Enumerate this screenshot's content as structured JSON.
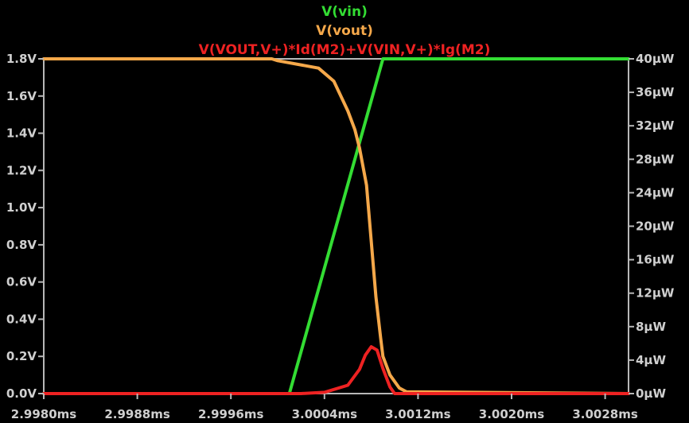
{
  "chart_data": {
    "type": "line",
    "title_lines": [
      {
        "text": "V(vin)",
        "color": "#33dd33"
      },
      {
        "text": "V(vout)",
        "color": "#f5a84a"
      },
      {
        "text": "V(VOUT,V+)*Id(M2)+V(VIN,V+)*Ig(M2)",
        "color": "#ee2222"
      }
    ],
    "x_axis": {
      "unit": "ms",
      "range": [
        2.998,
        3.003
      ],
      "ticks": [
        2.998,
        2.9988,
        2.9996,
        3.0004,
        3.0012,
        3.002,
        3.0028
      ],
      "tick_labels": [
        "2.9980ms",
        "2.9988ms",
        "2.9996ms",
        "3.0004ms",
        "3.0012ms",
        "3.0020ms",
        "3.0028ms"
      ]
    },
    "y_left": {
      "unit": "V",
      "range": [
        0,
        1.8
      ],
      "ticks": [
        0.0,
        0.2,
        0.4,
        0.6,
        0.8,
        1.0,
        1.2,
        1.4,
        1.6,
        1.8
      ],
      "tick_labels": [
        "0.0V",
        "0.2V",
        "0.4V",
        "0.6V",
        "0.8V",
        "1.0V",
        "1.2V",
        "1.4V",
        "1.6V",
        "1.8V"
      ]
    },
    "y_right": {
      "unit": "µW",
      "range": [
        0,
        40
      ],
      "ticks": [
        0,
        4,
        8,
        12,
        16,
        20,
        24,
        28,
        32,
        36,
        40
      ],
      "tick_labels": [
        "0µW",
        "4µW",
        "8µW",
        "12µW",
        "16µW",
        "20µW",
        "24µW",
        "28µW",
        "32µW",
        "36µW",
        "40µW"
      ]
    },
    "grid": false,
    "series": [
      {
        "name": "V(vin)",
        "axis": "left",
        "color": "#33dd33",
        "x": [
          2.998,
          3.0001,
          3.0009,
          3.003
        ],
        "y": [
          0.0,
          0.0,
          1.8,
          1.8
        ]
      },
      {
        "name": "V(vout)",
        "axis": "left",
        "color": "#f5a84a",
        "x": [
          2.998,
          2.99995,
          3.0,
          3.00035,
          3.00048,
          3.0006,
          3.00066,
          3.0007,
          3.00076,
          3.0008,
          3.00084,
          3.00088,
          3.0009,
          3.00096,
          3.00104,
          3.0011,
          3.003
        ],
        "y": [
          1.8,
          1.8,
          1.79,
          1.75,
          1.68,
          1.52,
          1.42,
          1.32,
          1.12,
          0.82,
          0.52,
          0.3,
          0.2,
          0.1,
          0.03,
          0.01,
          0.0
        ]
      },
      {
        "name": "V(VOUT,V+)*Id(M2)+V(VIN,V+)*Ig(M2)",
        "axis": "right",
        "color": "#ee2222",
        "x": [
          2.998,
          3.0002,
          3.0004,
          3.0006,
          3.0007,
          3.00075,
          3.0008,
          3.00085,
          3.0009,
          3.00096,
          3.001,
          3.003
        ],
        "y": [
          0.0,
          0.0,
          0.15,
          1.0,
          2.9,
          4.6,
          5.6,
          5.2,
          3.0,
          0.8,
          0.0,
          0.0
        ]
      }
    ]
  }
}
